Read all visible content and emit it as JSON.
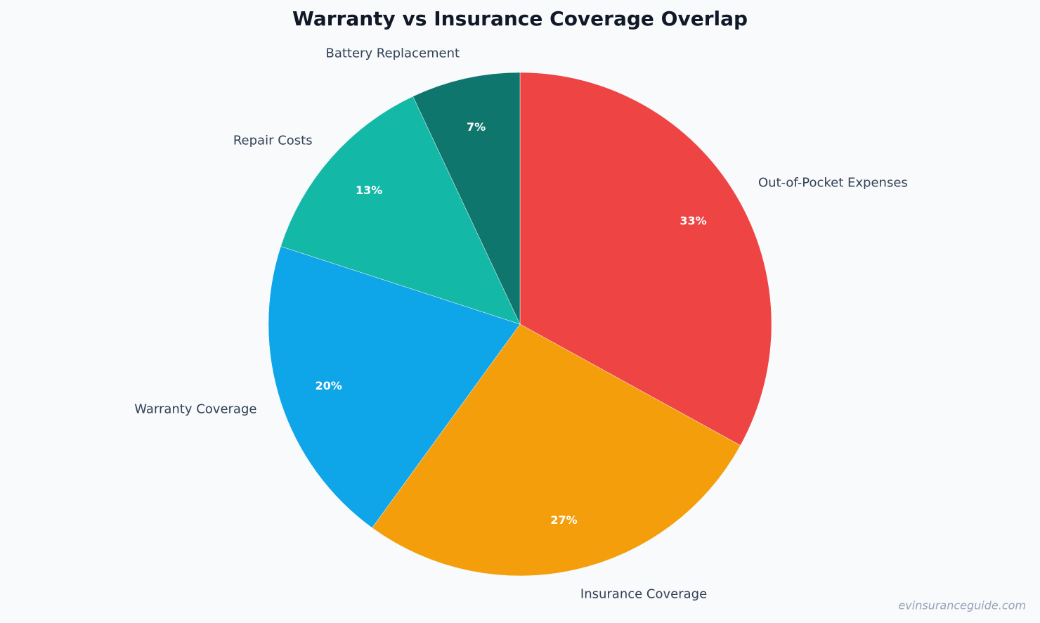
{
  "chart_data": {
    "type": "pie",
    "title": "Warranty vs Insurance Coverage Overlap",
    "categories": [
      "Out-of-Pocket Expenses",
      "Insurance Coverage",
      "Warranty Coverage",
      "Repair Costs",
      "Battery Replacement"
    ],
    "values": [
      33,
      27,
      20,
      13,
      7
    ],
    "value_labels": [
      "33%",
      "27%",
      "20%",
      "13%",
      "7%"
    ],
    "colors": [
      "#ef4444",
      "#f59e0b",
      "#0ea5e9",
      "#14b8a6",
      "#0f766e"
    ]
  },
  "watermark": "evinsuranceguide.com"
}
